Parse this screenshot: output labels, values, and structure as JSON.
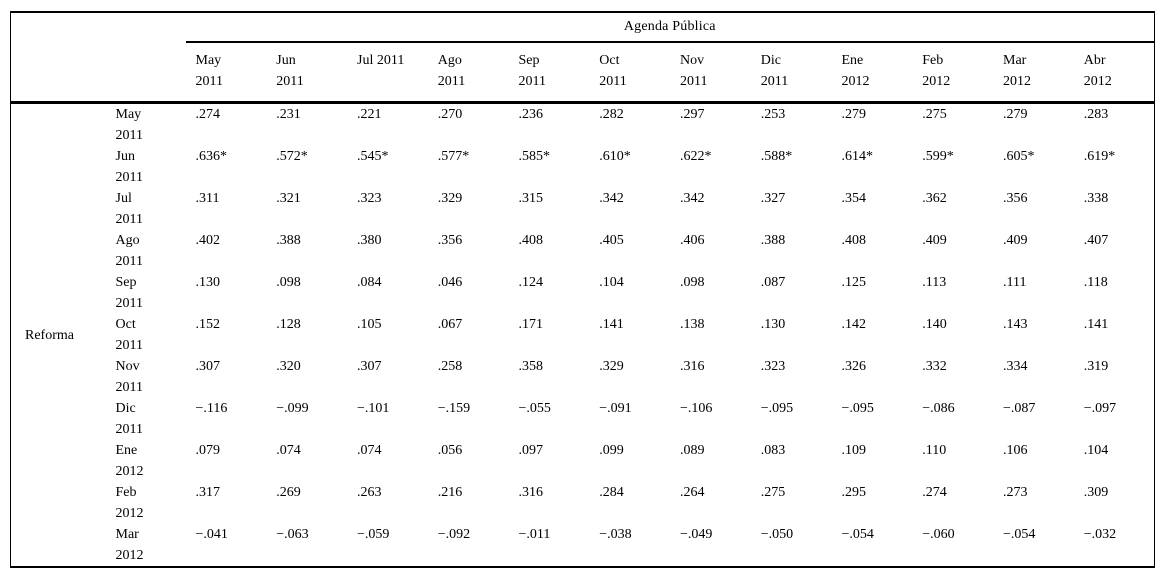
{
  "page": {
    "background_color": "#ffffff",
    "text_color": "#000000",
    "border_color": "#000000"
  },
  "table": {
    "spanner_label": "Agenda Pública",
    "row_group_label": "Reforma",
    "columns": [
      {
        "l1": "May",
        "l2": "2011"
      },
      {
        "l1": "Jun",
        "l2": "2011"
      },
      {
        "l1": "Jul 2011",
        "l2": ""
      },
      {
        "l1": "Ago",
        "l2": "2011"
      },
      {
        "l1": "Sep",
        "l2": "2011"
      },
      {
        "l1": "Oct",
        "l2": "2011"
      },
      {
        "l1": "Nov",
        "l2": "2011"
      },
      {
        "l1": "Dic",
        "l2": "2011"
      },
      {
        "l1": "Ene",
        "l2": "2012"
      },
      {
        "l1": "Feb",
        "l2": "2012"
      },
      {
        "l1": "Mar",
        "l2": "2012"
      },
      {
        "l1": "Abr",
        "l2": "2012"
      }
    ],
    "rows": [
      {
        "l1": "May",
        "l2": "2011",
        "values": [
          ".274",
          ".231",
          ".221",
          ".270",
          ".236",
          ".282",
          ".297",
          ".253",
          ".279",
          ".275",
          ".279",
          ".283"
        ]
      },
      {
        "l1": "Jun",
        "l2": "2011",
        "values": [
          ".636*",
          ".572*",
          ".545*",
          ".577*",
          ".585*",
          ".610*",
          ".622*",
          ".588*",
          ".614*",
          ".599*",
          ".605*",
          ".619*"
        ]
      },
      {
        "l1": "Jul",
        "l2": "2011",
        "values": [
          ".311",
          ".321",
          ".323",
          ".329",
          ".315",
          ".342",
          ".342",
          ".327",
          ".354",
          ".362",
          ".356",
          ".338"
        ]
      },
      {
        "l1": "Ago",
        "l2": "2011",
        "values": [
          ".402",
          ".388",
          ".380",
          ".356",
          ".408",
          ".405",
          ".406",
          ".388",
          ".408",
          ".409",
          ".409",
          ".407"
        ]
      },
      {
        "l1": "Sep",
        "l2": "2011",
        "values": [
          ".130",
          ".098",
          ".084",
          ".046",
          ".124",
          ".104",
          ".098",
          ".087",
          ".125",
          ".113",
          ".111",
          ".118"
        ]
      },
      {
        "l1": "Oct",
        "l2": "2011",
        "values": [
          ".152",
          ".128",
          ".105",
          ".067",
          ".171",
          ".141",
          ".138",
          ".130",
          ".142",
          ".140",
          ".143",
          ".141"
        ]
      },
      {
        "l1": "Nov",
        "l2": "2011",
        "values": [
          ".307",
          ".320",
          ".307",
          ".258",
          ".358",
          ".329",
          ".316",
          ".323",
          ".326",
          ".332",
          ".334",
          ".319"
        ]
      },
      {
        "l1": "Dic",
        "l2": "2011",
        "values": [
          "−.116",
          "−.099",
          "−.101",
          "−.159",
          "−.055",
          "−.091",
          "−.106",
          "−.095",
          "−.095",
          "−.086",
          "−.087",
          "−.097"
        ]
      },
      {
        "l1": "Ene",
        "l2": "2012",
        "values": [
          ".079",
          ".074",
          ".074",
          ".056",
          ".097",
          ".099",
          ".089",
          ".083",
          ".109",
          ".110",
          ".106",
          ".104"
        ]
      },
      {
        "l1": "Feb",
        "l2": "2012",
        "values": [
          ".317",
          ".269",
          ".263",
          ".216",
          ".316",
          ".284",
          ".264",
          ".275",
          ".295",
          ".274",
          ".273",
          ".309"
        ]
      },
      {
        "l1": "Mar",
        "l2": "2012",
        "values": [
          "−.041",
          "−.063",
          "−.059",
          "−.092",
          "−.011",
          "−.038",
          "−.049",
          "−.050",
          "−.054",
          "−.060",
          "−.054",
          "−.032"
        ]
      }
    ]
  }
}
